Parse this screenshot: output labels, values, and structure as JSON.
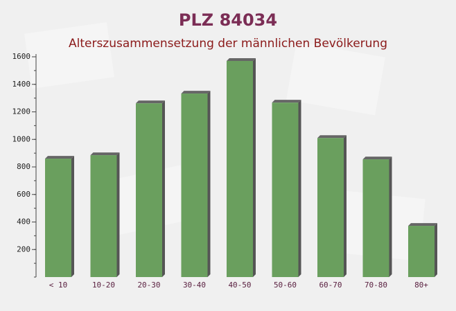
{
  "chart_data": {
    "type": "bar",
    "title": "PLZ 84034",
    "subtitle": "Alterszusammensetzung der männlichen Bevölkerung",
    "categories": [
      "< 10",
      "10-20",
      "20-30",
      "30-40",
      "40-50",
      "50-60",
      "60-70",
      "70-80",
      "80+"
    ],
    "values": [
      860,
      885,
      1262,
      1333,
      1570,
      1267,
      1010,
      855,
      372
    ],
    "color": "#6a9f5e",
    "ylim": [
      0,
      1600
    ],
    "yticks": [
      200,
      400,
      600,
      800,
      1000,
      1200,
      1400,
      1600
    ]
  }
}
